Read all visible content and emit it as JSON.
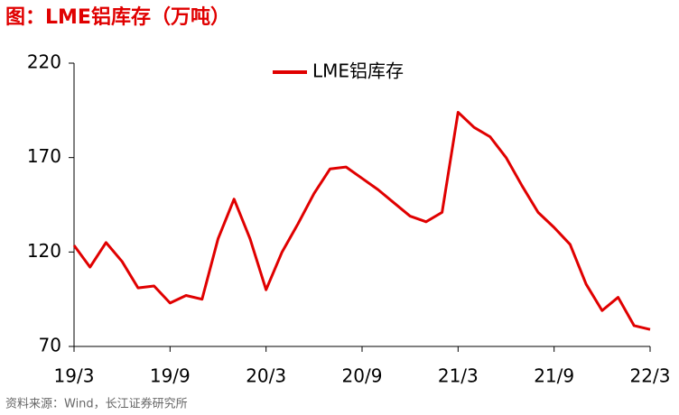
{
  "chart_data": {
    "type": "line",
    "title": "图：LME铝库存（万吨）",
    "source": "资料来源：Wind，长江证券研究所",
    "x": [
      "19/3",
      "19/4",
      "19/5",
      "19/6",
      "19/7",
      "19/8",
      "19/9",
      "19/10",
      "19/11",
      "19/12",
      "20/1",
      "20/2",
      "20/3",
      "20/4",
      "20/5",
      "20/6",
      "20/7",
      "20/8",
      "20/9",
      "20/10",
      "20/11",
      "20/12",
      "21/1",
      "21/2",
      "21/3",
      "21/4",
      "21/5",
      "21/6",
      "21/7",
      "21/8",
      "21/9",
      "21/10",
      "21/11",
      "21/12",
      "22/1",
      "22/2",
      "22/3"
    ],
    "series": [
      {
        "name": "LME铝库存",
        "color": "#e00000",
        "values": [
          123.5,
          112,
          125,
          115,
          101,
          102,
          93,
          97,
          95,
          127,
          148,
          127,
          100,
          120,
          135,
          151,
          164,
          165,
          159,
          153,
          146,
          139,
          136,
          141,
          194,
          186,
          181,
          170,
          155,
          141,
          133,
          124,
          103,
          89,
          96,
          81,
          79
        ]
      }
    ],
    "xticks": [
      "19/3",
      "19/9",
      "20/3",
      "20/9",
      "21/3",
      "21/9",
      "22/3"
    ],
    "ylim": [
      70,
      220
    ],
    "yticks": [
      70,
      120,
      170,
      220
    ],
    "legend": "top",
    "grid": false
  }
}
